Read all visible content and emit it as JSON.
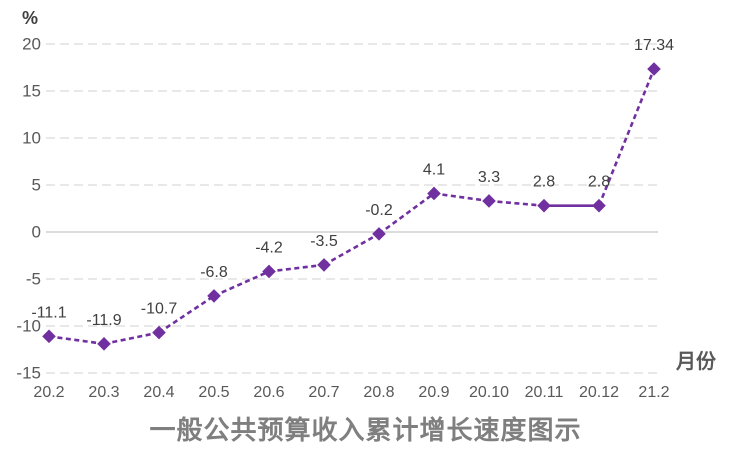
{
  "chart_data": {
    "type": "line",
    "title": "一般公共预算收入累计增长速度图示",
    "xlabel": "月份",
    "ylabel": "%",
    "categories": [
      "20.2",
      "20.3",
      "20.4",
      "20.5",
      "20.6",
      "20.7",
      "20.8",
      "20.9",
      "20.10",
      "20.11",
      "20.12",
      "21.2"
    ],
    "values": [
      -11.1,
      -11.9,
      -10.7,
      -6.8,
      -4.2,
      -3.5,
      -0.2,
      4.1,
      3.3,
      2.8,
      2.8,
      17.34
    ],
    "data_labels": [
      "-11.1",
      "-11.9",
      "-10.7",
      "-6.8",
      "-4.2",
      "-3.5",
      "-0.2",
      "4.1",
      "3.3",
      "2.8",
      "2.8",
      "17.34"
    ],
    "y_ticks": [
      20,
      15,
      10,
      5,
      0,
      -5,
      -10,
      -15
    ],
    "ylim": [
      -15,
      20
    ],
    "grid": true,
    "legend": "none",
    "line_style": "dashed",
    "marker": "diamond",
    "solid_segment_indices": [
      [
        9,
        10
      ]
    ],
    "colors": {
      "series": "#7030A0",
      "grid": "#D9D9D9",
      "zero_line": "#C6C6C6",
      "tick_label": "#595959",
      "data_label": "#404040",
      "title": "#7F7F7F"
    }
  }
}
